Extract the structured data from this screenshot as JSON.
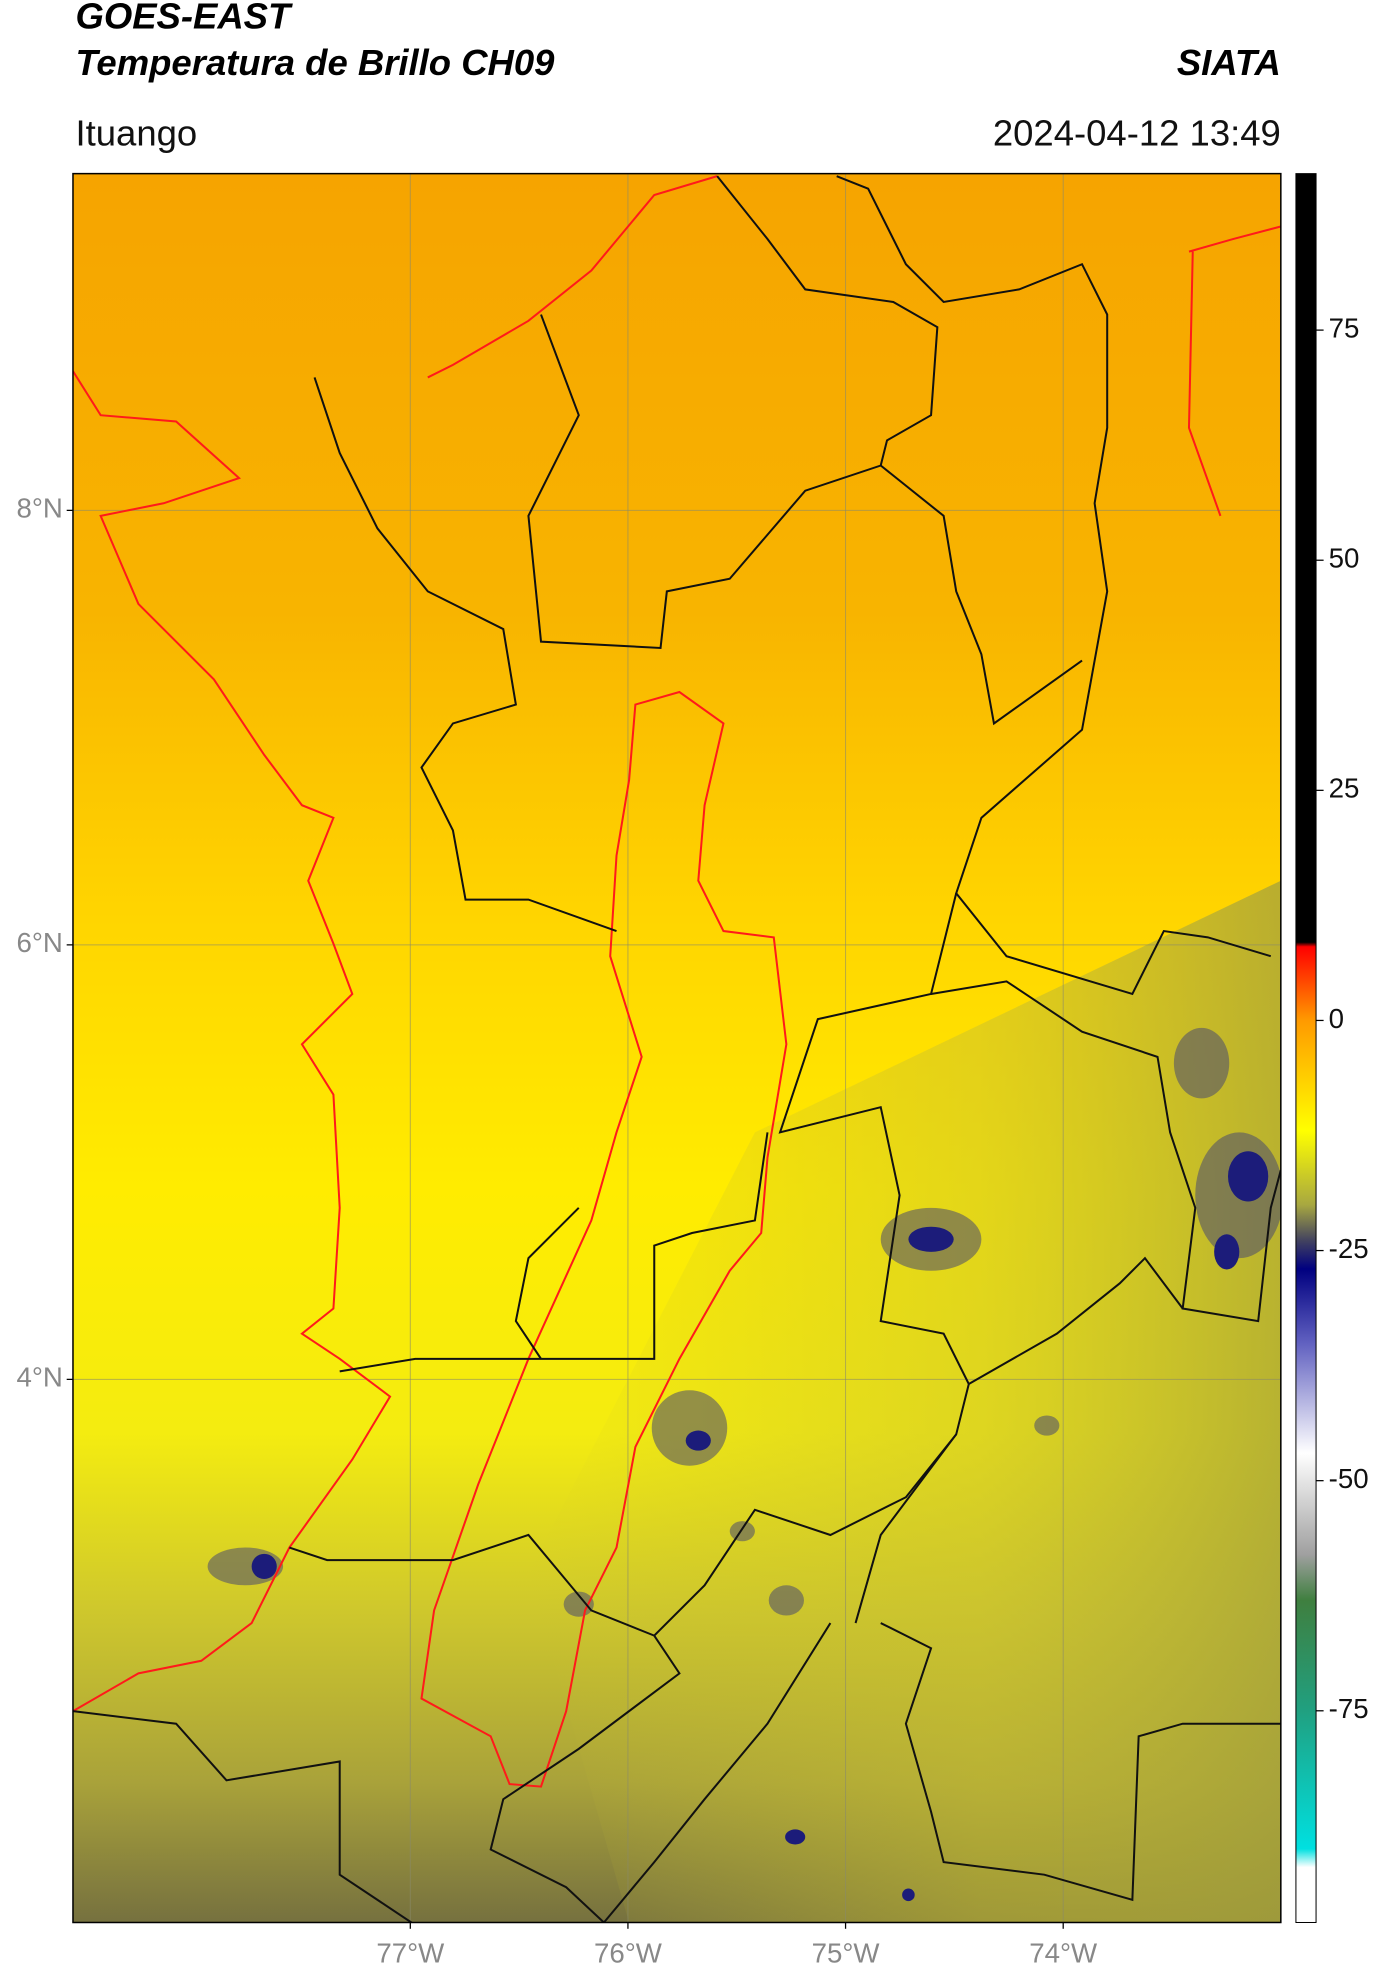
{
  "header": {
    "satellite": "GOES-EAST",
    "product": "Temperatura de Brillo CH09",
    "institution": "SIATA",
    "location": "Ituango",
    "datetime": "2024-04-12 13:49"
  },
  "chart_data": {
    "type": "map",
    "xlim": [
      -78.55,
      -73.0
    ],
    "ylim": [
      1.5,
      9.55
    ],
    "xticks": [
      {
        "value": -77,
        "label": "77°W"
      },
      {
        "value": -76,
        "label": "76°W"
      },
      {
        "value": -75,
        "label": "75°W"
      },
      {
        "value": -74,
        "label": "74°W"
      }
    ],
    "yticks": [
      {
        "value": 8,
        "label": "8°N"
      },
      {
        "value": 6,
        "label": "6°N"
      },
      {
        "value": 4,
        "label": "4°N"
      }
    ],
    "grid": true,
    "colorbar": {
      "lim": [
        -98,
        92
      ],
      "ticks": [
        75,
        50,
        25,
        0,
        -25,
        -50,
        -75
      ],
      "stops": [
        {
          "value": 92,
          "color": "#000000"
        },
        {
          "value": 8.5,
          "color": "#000000"
        },
        {
          "value": 8,
          "color": "#ff0000"
        },
        {
          "value": 0,
          "color": "#ff9a00"
        },
        {
          "value": -12,
          "color": "#ffff00"
        },
        {
          "value": -20,
          "color": "#a8a840"
        },
        {
          "value": -24,
          "color": "#404060"
        },
        {
          "value": -27,
          "color": "#000080"
        },
        {
          "value": -35,
          "color": "#6060c0"
        },
        {
          "value": -47,
          "color": "#ffffff"
        },
        {
          "value": -58,
          "color": "#a0a0a0"
        },
        {
          "value": -63,
          "color": "#3f7f3f"
        },
        {
          "value": -75,
          "color": "#20a080"
        },
        {
          "value": -90,
          "color": "#00e0e0"
        },
        {
          "value": -92,
          "color": "#ffffff"
        },
        {
          "value": -98,
          "color": "#ffffff"
        }
      ]
    }
  }
}
